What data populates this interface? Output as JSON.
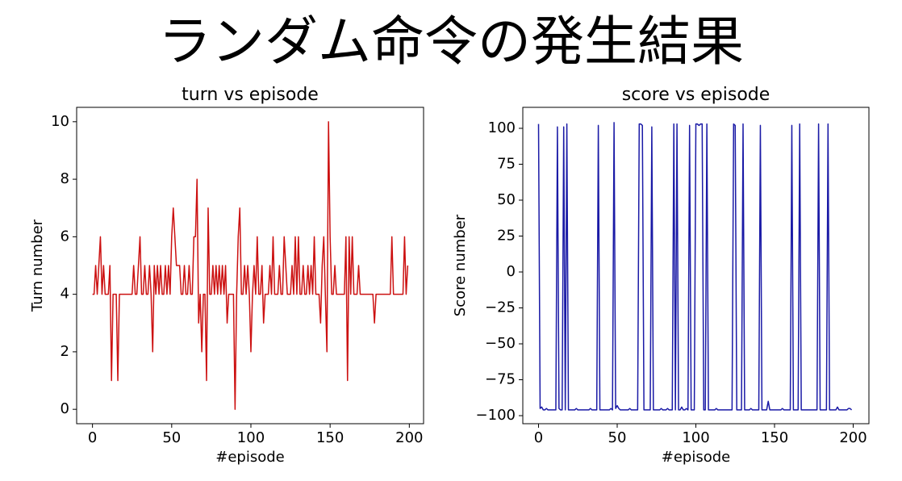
{
  "title": "ランダム命令の発生結果",
  "chart_data": [
    {
      "type": "line",
      "title": "turn vs episode",
      "xlabel": "#episode",
      "ylabel": "Turn number",
      "color": "#cc1111",
      "xlim": [
        -10,
        209
      ],
      "ylim": [
        -0.5,
        10.5
      ],
      "xticks": [
        0,
        50,
        100,
        150,
        200
      ],
      "yticks": [
        0,
        2,
        4,
        6,
        8,
        10
      ],
      "x": [
        0,
        1,
        2,
        3,
        4,
        5,
        6,
        7,
        8,
        9,
        10,
        11,
        12,
        13,
        14,
        15,
        16,
        17,
        18,
        19,
        20,
        21,
        22,
        23,
        24,
        25,
        26,
        27,
        28,
        29,
        30,
        31,
        32,
        33,
        34,
        35,
        36,
        37,
        38,
        39,
        40,
        41,
        42,
        43,
        44,
        45,
        46,
        47,
        48,
        49,
        50,
        51,
        52,
        53,
        54,
        55,
        56,
        57,
        58,
        59,
        60,
        61,
        62,
        63,
        64,
        65,
        66,
        67,
        68,
        69,
        70,
        71,
        72,
        73,
        74,
        75,
        76,
        77,
        78,
        79,
        80,
        81,
        82,
        83,
        84,
        85,
        86,
        87,
        88,
        89,
        90,
        91,
        92,
        93,
        94,
        95,
        96,
        97,
        98,
        99,
        100,
        101,
        102,
        103,
        104,
        105,
        106,
        107,
        108,
        109,
        110,
        111,
        112,
        113,
        114,
        115,
        116,
        117,
        118,
        119,
        120,
        121,
        122,
        123,
        124,
        125,
        126,
        127,
        128,
        129,
        130,
        131,
        132,
        133,
        134,
        135,
        136,
        137,
        138,
        139,
        140,
        141,
        142,
        143,
        144,
        145,
        146,
        147,
        148,
        149,
        150,
        151,
        152,
        153,
        154,
        155,
        156,
        157,
        158,
        159,
        160,
        161,
        162,
        163,
        164,
        165,
        166,
        167,
        168,
        169,
        170,
        171,
        172,
        173,
        174,
        175,
        176,
        177,
        178,
        179,
        180,
        181,
        182,
        183,
        184,
        185,
        186,
        187,
        188,
        189,
        190,
        191,
        192,
        193,
        194,
        195,
        196,
        197,
        198,
        199
      ],
      "values": [
        4,
        4,
        5,
        4,
        5,
        6,
        4,
        5,
        4,
        4,
        4,
        5,
        1,
        4,
        4,
        4,
        1,
        4,
        4,
        4,
        4,
        4,
        4,
        4,
        4,
        4,
        5,
        4,
        4,
        5,
        6,
        4,
        4,
        5,
        4,
        4,
        5,
        4,
        2,
        5,
        4,
        5,
        4,
        5,
        4,
        4,
        5,
        4,
        5,
        4,
        6,
        7,
        6,
        5,
        5,
        5,
        4,
        4,
        5,
        4,
        4,
        5,
        4,
        4,
        6,
        6,
        8,
        3,
        4,
        2,
        4,
        4,
        1,
        7,
        4,
        4,
        5,
        4,
        5,
        4,
        5,
        4,
        5,
        4,
        5,
        3,
        4,
        4,
        4,
        4,
        0,
        4,
        6,
        7,
        4,
        4,
        5,
        4,
        5,
        4,
        2,
        4,
        5,
        4,
        6,
        4,
        4,
        5,
        3,
        4,
        4,
        4,
        5,
        4,
        6,
        4,
        4,
        4,
        5,
        4,
        4,
        6,
        5,
        4,
        4,
        4,
        5,
        4,
        6,
        4,
        6,
        4,
        4,
        5,
        4,
        4,
        5,
        4,
        5,
        4,
        6,
        4,
        4,
        4,
        3,
        5,
        6,
        4,
        2,
        10,
        6,
        4,
        4,
        5,
        4,
        4,
        4,
        4,
        4,
        4,
        6,
        1,
        6,
        4,
        6,
        4,
        4,
        4,
        5,
        4,
        4,
        4,
        4,
        4,
        4,
        4,
        4,
        4,
        3,
        4,
        4,
        4,
        4,
        4,
        4,
        4,
        4,
        4,
        4,
        6,
        4,
        4,
        4,
        4,
        4,
        4,
        4,
        6,
        4,
        5
      ]
    },
    {
      "type": "line",
      "title": "score vs episode",
      "xlabel": "#episode",
      "ylabel": "Score number",
      "color": "#1a1aa6",
      "xlim": [
        -10,
        210
      ],
      "ylim": [
        -105.6,
        114.6
      ],
      "xticks": [
        0,
        50,
        100,
        150,
        200
      ],
      "yticks": [
        {
          "value": -100,
          "label": "−100"
        },
        {
          "value": -75,
          "label": "−75"
        },
        {
          "value": -50,
          "label": "−50"
        },
        {
          "value": -25,
          "label": "−25"
        },
        0,
        25,
        50,
        75,
        100
      ],
      "x": [
        0,
        1,
        2,
        3,
        4,
        5,
        6,
        7,
        8,
        9,
        10,
        11,
        12,
        13,
        14,
        15,
        16,
        17,
        18,
        19,
        20,
        21,
        22,
        23,
        24,
        25,
        26,
        27,
        28,
        29,
        30,
        31,
        32,
        33,
        34,
        35,
        36,
        37,
        38,
        39,
        40,
        41,
        42,
        43,
        44,
        45,
        46,
        47,
        48,
        49,
        50,
        51,
        52,
        53,
        54,
        55,
        56,
        57,
        58,
        59,
        60,
        61,
        62,
        63,
        64,
        65,
        66,
        67,
        68,
        69,
        70,
        71,
        72,
        73,
        74,
        75,
        76,
        77,
        78,
        79,
        80,
        81,
        82,
        83,
        84,
        85,
        86,
        87,
        88,
        89,
        90,
        91,
        92,
        93,
        94,
        95,
        96,
        97,
        98,
        99,
        100,
        101,
        102,
        103,
        104,
        105,
        106,
        107,
        108,
        109,
        110,
        111,
        112,
        113,
        114,
        115,
        116,
        117,
        118,
        119,
        120,
        121,
        122,
        123,
        124,
        125,
        126,
        127,
        128,
        129,
        130,
        131,
        132,
        133,
        134,
        135,
        136,
        137,
        138,
        139,
        140,
        141,
        142,
        143,
        144,
        145,
        146,
        147,
        148,
        149,
        150,
        151,
        152,
        153,
        154,
        155,
        156,
        157,
        158,
        159,
        160,
        161,
        162,
        163,
        164,
        165,
        166,
        167,
        168,
        169,
        170,
        171,
        172,
        173,
        174,
        175,
        176,
        177,
        178,
        179,
        180,
        181,
        182,
        183,
        184,
        185,
        186,
        187,
        188,
        189,
        190,
        191,
        192,
        193,
        194,
        195,
        196,
        197,
        198,
        199
      ],
      "values": [
        103,
        -95,
        -94,
        -96,
        -96,
        -95,
        -96,
        -96,
        -96,
        -96,
        -96,
        -96,
        101,
        -95,
        -96,
        -96,
        101,
        -96,
        103,
        -96,
        -96,
        -96,
        -96,
        -96,
        -95,
        -96,
        -96,
        -96,
        -96,
        -96,
        -96,
        -96,
        -96,
        -95,
        -96,
        -96,
        -96,
        -96,
        102,
        -96,
        -96,
        -96,
        -96,
        -96,
        -96,
        -96,
        -95,
        -96,
        104,
        -95,
        -93,
        -95,
        -96,
        -96,
        -96,
        -96,
        -96,
        -96,
        -95,
        -96,
        -96,
        -96,
        -96,
        -96,
        103,
        103,
        102,
        -96,
        -96,
        -96,
        -96,
        -96,
        101,
        -96,
        -96,
        -96,
        -96,
        -96,
        -95,
        -96,
        -96,
        -96,
        -95,
        -96,
        -96,
        -96,
        103,
        -96,
        103,
        -96,
        -96,
        -94,
        -96,
        -96,
        -95,
        -96,
        102,
        -96,
        -96,
        -96,
        103,
        103,
        102,
        103,
        103,
        -96,
        -96,
        103,
        -96,
        -96,
        -96,
        -96,
        -96,
        -95,
        -96,
        -96,
        -96,
        -96,
        -96,
        -96,
        -96,
        -96,
        -96,
        -96,
        103,
        102,
        -96,
        -96,
        -96,
        -96,
        103,
        -96,
        -96,
        -96,
        -96,
        -95,
        -96,
        -96,
        -96,
        -96,
        -96,
        102,
        -96,
        -96,
        -96,
        -96,
        -90,
        -96,
        -96,
        -96,
        -96,
        -96,
        -96,
        -96,
        -96,
        -95,
        -96,
        -96,
        -96,
        -96,
        -96,
        102,
        -96,
        -96,
        -96,
        -96,
        103,
        -96,
        -96,
        -96,
        -96,
        -96,
        -96,
        -96,
        -96,
        -96,
        -96,
        -96,
        103,
        -96,
        -96,
        -96,
        -96,
        -96,
        103,
        -96,
        -96,
        -96,
        -96,
        -96,
        -94,
        -96,
        -96,
        -96,
        -96,
        -96,
        -96,
        -95,
        -95,
        -96
      ]
    }
  ]
}
